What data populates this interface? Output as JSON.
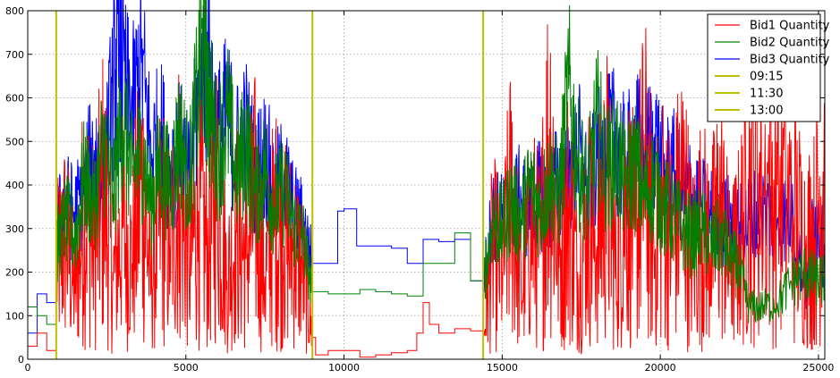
{
  "chart_data": {
    "type": "line",
    "title": "",
    "xlabel": "",
    "ylabel": "",
    "xlim": [
      0,
      25200
    ],
    "ylim": [
      0,
      800
    ],
    "grid": true,
    "grid_style": "dotted",
    "legend_position": "top-right",
    "x_ticks": [
      {
        "value": 0,
        "label": "0"
      },
      {
        "value": 5000,
        "label": "5000"
      },
      {
        "value": 10000,
        "label": "10000"
      },
      {
        "value": 15000,
        "label": "15000"
      },
      {
        "value": 20000,
        "label": "20000"
      },
      {
        "value": 25000,
        "label": "25000"
      }
    ],
    "y_ticks": [
      {
        "value": 0,
        "label": "0"
      },
      {
        "value": 100,
        "label": "100"
      },
      {
        "value": 200,
        "label": "200"
      },
      {
        "value": 300,
        "label": "300"
      },
      {
        "value": 400,
        "label": "400"
      },
      {
        "value": 500,
        "label": "500"
      },
      {
        "value": 600,
        "label": "600"
      },
      {
        "value": 700,
        "label": "700"
      },
      {
        "value": 800,
        "label": "800"
      }
    ],
    "series": [
      {
        "name": "Bid1 Quantity",
        "color": "#ff0000",
        "x": [
          0,
          300,
          600,
          900,
          1200,
          1500,
          1800,
          2100,
          2400,
          2700,
          3000,
          3300,
          3600,
          3900,
          4200,
          4500,
          4800,
          5100,
          5400,
          5700,
          6000,
          6300,
          6600,
          6900,
          7200,
          7500,
          7800,
          8100,
          8400,
          8700,
          9000,
          9100,
          9500,
          10000,
          10500,
          11000,
          11500,
          12000,
          12300,
          12500,
          12700,
          13000,
          13500,
          14000,
          14400,
          14700,
          15000,
          15300,
          15600,
          15900,
          16200,
          16500,
          16800,
          17100,
          17400,
          17700,
          18000,
          18300,
          18600,
          18900,
          19200,
          19500,
          19800,
          20100,
          20400,
          20700,
          21000,
          21300,
          21600,
          21900,
          22200,
          22500,
          22800,
          23200,
          23700,
          24200,
          24600,
          24900,
          25200
        ],
        "values": [
          30,
          60,
          20,
          200,
          280,
          150,
          350,
          250,
          390,
          180,
          300,
          220,
          410,
          170,
          330,
          260,
          380,
          200,
          340,
          240,
          400,
          180,
          290,
          230,
          350,
          190,
          310,
          260,
          250,
          200,
          50,
          10,
          20,
          20,
          5,
          10,
          15,
          20,
          60,
          130,
          80,
          60,
          70,
          65,
          35,
          250,
          200,
          380,
          150,
          300,
          240,
          530,
          210,
          350,
          180,
          320,
          260,
          390,
          200,
          360,
          280,
          430,
          240,
          330,
          270,
          390,
          230,
          300,
          250,
          350,
          200,
          260,
          400,
          400,
          400,
          330,
          260,
          280,
          480
        ]
      },
      {
        "name": "Bid2 Quantity",
        "color": "#008000",
        "x": [
          0,
          300,
          600,
          900,
          1200,
          1500,
          1800,
          2100,
          2400,
          2700,
          3000,
          3300,
          3600,
          3900,
          4200,
          4500,
          4800,
          5100,
          5400,
          5600,
          5700,
          6000,
          6300,
          6600,
          6900,
          7200,
          7500,
          7800,
          8100,
          8400,
          8700,
          9000,
          9500,
          10000,
          10500,
          11000,
          11500,
          12000,
          12500,
          13000,
          13500,
          14000,
          14400,
          14700,
          15000,
          15300,
          15600,
          15900,
          16200,
          16500,
          16800,
          17100,
          17400,
          17700,
          18000,
          18300,
          18600,
          18900,
          19200,
          19500,
          19800,
          20100,
          20400,
          20700,
          21000,
          21300,
          21600,
          21900,
          22200,
          22500,
          22800,
          23200,
          23700,
          24200,
          24600,
          24900,
          25200
        ],
        "values": [
          120,
          100,
          80,
          250,
          320,
          280,
          420,
          350,
          500,
          380,
          560,
          420,
          480,
          360,
          450,
          390,
          520,
          410,
          630,
          750,
          600,
          470,
          560,
          420,
          500,
          380,
          440,
          350,
          390,
          310,
          280,
          155,
          150,
          150,
          160,
          155,
          150,
          145,
          220,
          220,
          290,
          180,
          170,
          320,
          300,
          360,
          320,
          400,
          340,
          420,
          370,
          620,
          450,
          380,
          540,
          430,
          470,
          400,
          450,
          370,
          410,
          350,
          330,
          300,
          280,
          300,
          260,
          280,
          240,
          200,
          120,
          120,
          130,
          180,
          200,
          180,
          180
        ]
      },
      {
        "name": "Bid3 Quantity",
        "color": "#0000ff",
        "x": [
          0,
          300,
          600,
          900,
          1200,
          1500,
          1800,
          2100,
          2400,
          2700,
          2900,
          3000,
          3300,
          3600,
          3900,
          4200,
          4500,
          4800,
          5100,
          5400,
          5700,
          6000,
          6300,
          6600,
          6900,
          7200,
          7500,
          7800,
          8100,
          8400,
          8700,
          9000,
          9500,
          9800,
          10000,
          10400,
          11000,
          11500,
          12000,
          12500,
          13000,
          13500,
          14000,
          14400,
          14700,
          15000,
          15300,
          15600,
          15900,
          16200,
          16500,
          16800,
          17100,
          17400,
          17700,
          18000,
          18300,
          18600,
          18900,
          19200,
          19500,
          19800,
          20100,
          20400,
          20700,
          21000,
          21300,
          21600,
          21900,
          22200,
          22500,
          22800,
          23200,
          23700,
          24200,
          24600,
          24900,
          25200
        ],
        "values": [
          60,
          150,
          130,
          300,
          360,
          330,
          400,
          480,
          420,
          620,
          700,
          640,
          560,
          680,
          470,
          520,
          440,
          480,
          410,
          600,
          680,
          510,
          560,
          480,
          520,
          430,
          470,
          390,
          420,
          340,
          310,
          220,
          220,
          340,
          345,
          260,
          260,
          255,
          220,
          275,
          270,
          275,
          180,
          170,
          330,
          320,
          350,
          370,
          340,
          380,
          360,
          420,
          400,
          490,
          380,
          460,
          480,
          510,
          440,
          500,
          470,
          510,
          420,
          430,
          400,
          380,
          350,
          330,
          310,
          320,
          300,
          320,
          340,
          320,
          330,
          150,
          350,
          230
        ]
      }
    ],
    "vlines": [
      {
        "name": "09:15",
        "x": 900,
        "color": "#bfbf00"
      },
      {
        "name": "11:30",
        "x": 9000,
        "color": "#bfbf00"
      },
      {
        "name": "13:00",
        "x": 14400,
        "color": "#bfbf00"
      }
    ]
  }
}
